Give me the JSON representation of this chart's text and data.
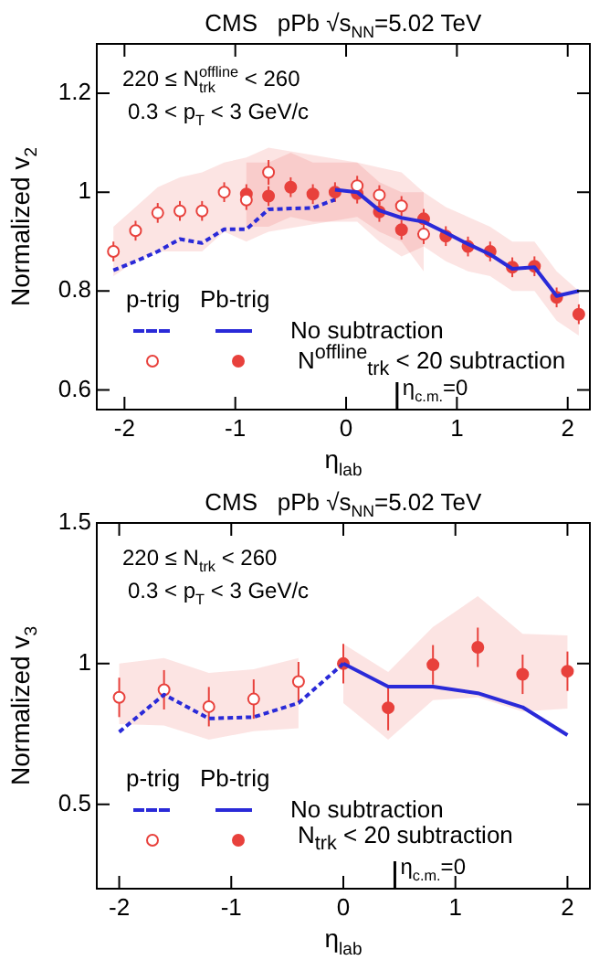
{
  "chart_data": [
    {
      "type": "scatter",
      "title": "CMS   pPb √s$_{NN}$=5.02 TeV",
      "xlabel": "η$_{lab}$",
      "ylabel": "Normalized v$_{2}$",
      "annotations": [
        "220 ≤ N$^{offline}$$_{trk}$ < 260",
        "0.3 < p$_{T}$ < 3 GeV/c"
      ],
      "legend_title": "p-trig   Pb-trig",
      "legend": "bottom left",
      "xlim": [
        -2.25,
        2.2
      ],
      "xticks": [
        -2,
        -1,
        0,
        1,
        2
      ],
      "ylim": [
        0.56,
        1.3
      ],
      "yticks": [
        0.6,
        0.8,
        1,
        1.2
      ],
      "ref_lines": [
        {
          "axis": "x",
          "value": 0.46,
          "label": "η$_{c.m.}$=0"
        }
      ],
      "series": [
        {
          "type": "line",
          "color": "#2a2ad8",
          "line_style": "dashed",
          "marker": "none",
          "x": [
            -2.1,
            -1.9,
            -1.7,
            -1.5,
            -1.3,
            -1.1,
            -0.9,
            -0.7,
            -0.5,
            -0.3,
            -0.1
          ],
          "values": [
            0.842,
            0.86,
            0.88,
            0.905,
            0.897,
            0.925,
            0.925,
            0.965,
            0.967,
            0.968,
            0.985
          ]
        },
        {
          "type": "line",
          "name": "No subtraction",
          "color": "#2a2ad8",
          "line_style": "solid",
          "marker": "none",
          "x": [
            -0.1,
            0.1,
            0.3,
            0.5,
            0.7,
            0.9,
            1.1,
            1.3,
            1.5,
            1.7,
            1.9,
            2.1
          ],
          "values": [
            1.005,
            1.0,
            0.963,
            0.948,
            0.94,
            0.918,
            0.895,
            0.874,
            0.845,
            0.848,
            0.79,
            0.8
          ]
        },
        {
          "type": "scatter",
          "color": "#e8413c",
          "marker": "circle",
          "x": [
            -2.1,
            -1.9,
            -1.7,
            -1.5,
            -1.3,
            -1.1,
            -0.9,
            -0.7,
            0.1,
            0.3,
            0.5,
            0.7
          ],
          "values": [
            0.88,
            0.922,
            0.958,
            0.962,
            0.962,
            1.0,
            0.984,
            1.04,
            1.013,
            0.994,
            0.972,
            0.915
          ],
          "errors": [
            0.02,
            0.02,
            0.02,
            0.02,
            0.02,
            0.02,
            0.02,
            0.025,
            0.02,
            0.02,
            0.02,
            0.02
          ],
          "lower": [
            0.83,
            0.86,
            0.88,
            0.88,
            0.88,
            0.92,
            0.9,
            0.92,
            0.95,
            0.92,
            0.9,
            0.84
          ],
          "upper": [
            0.93,
            0.97,
            1.01,
            1.03,
            1.04,
            1.06,
            1.07,
            1.09,
            1.06,
            1.05,
            1.04,
            1.0
          ]
        },
        {
          "type": "scatter",
          "name": "N$^{offline}$$_{trk}$ < 20 subtraction",
          "color": "#e8413c",
          "marker": "circle",
          "x": [
            -0.9,
            -0.7,
            -0.5,
            -0.3,
            -0.1,
            0.1,
            0.3,
            0.5,
            0.7,
            0.9,
            1.1,
            1.3,
            1.5,
            1.7,
            1.9,
            2.1
          ],
          "values": [
            0.996,
            0.992,
            1.01,
            0.996,
            1.0,
            0.997,
            0.96,
            0.924,
            0.946,
            0.911,
            0.89,
            0.88,
            0.848,
            0.85,
            0.787,
            0.753
          ],
          "errors": [
            0.02,
            0.02,
            0.02,
            0.02,
            0.02,
            0.02,
            0.02,
            0.02,
            0.02,
            0.02,
            0.02,
            0.02,
            0.02,
            0.02,
            0.02,
            0.02
          ],
          "lower": [
            0.93,
            0.93,
            0.95,
            0.94,
            0.94,
            0.94,
            0.9,
            0.87,
            0.89,
            0.86,
            0.84,
            0.83,
            0.8,
            0.8,
            0.74,
            0.71
          ],
          "upper": [
            1.06,
            1.06,
            1.08,
            1.06,
            1.06,
            1.06,
            1.02,
            1.0,
            1.0,
            0.97,
            0.95,
            0.93,
            0.9,
            0.9,
            0.84,
            0.8
          ]
        }
      ]
    },
    {
      "type": "scatter",
      "title": "CMS   pPb √s$_{NN}$=5.02 TeV",
      "xlabel": "η$_{lab}$",
      "ylabel": "Normalized v$_{3}$",
      "annotations": [
        "220 ≤ N$_{trk}$ < 260",
        "0.3 < p$_{T}$ < 3 GeV/c"
      ],
      "legend_title": "p-trig   Pb-trig",
      "legend": "bottom left",
      "xlim": [
        -2.2,
        2.2
      ],
      "xticks": [
        -2,
        -1,
        0,
        1,
        2
      ],
      "ylim": [
        0.2,
        1.5
      ],
      "yticks": [
        0.5,
        1,
        1.5
      ],
      "ref_lines": [
        {
          "axis": "x",
          "value": 0.46,
          "label": "η$_{c.m.}$=0"
        }
      ],
      "series": [
        {
          "type": "line",
          "color": "#2a2ad8",
          "line_style": "dashed",
          "marker": "none",
          "x": [
            -2,
            -1.6,
            -1.2,
            -0.8,
            -0.4,
            0
          ],
          "values": [
            0.757,
            0.89,
            0.805,
            0.81,
            0.86,
            1.0
          ]
        },
        {
          "type": "line",
          "name": "No subtraction",
          "color": "#2a2ad8",
          "line_style": "solid",
          "marker": "none",
          "x": [
            0,
            0.4,
            0.8,
            1.2,
            1.6,
            2
          ],
          "values": [
            1.0,
            0.918,
            0.918,
            0.895,
            0.845,
            0.746
          ]
        },
        {
          "type": "scatter",
          "color": "#e8413c",
          "marker": "circle",
          "x": [
            -2,
            -1.6,
            -1.2,
            -0.8,
            -0.4
          ],
          "values": [
            0.88,
            0.907,
            0.847,
            0.874,
            0.936
          ],
          "errors": [
            0.07,
            0.07,
            0.07,
            0.07,
            0.07
          ],
          "lower": [
            0.785,
            0.78,
            0.73,
            0.76,
            0.77
          ],
          "upper": [
            1.0,
            1.02,
            0.967,
            0.98,
            1.02
          ]
        },
        {
          "type": "scatter",
          "name": "N$_{trk}$ < 20 subtraction",
          "color": "#e8413c",
          "marker": "circle",
          "x": [
            0,
            0.4,
            0.8,
            1.2,
            1.6,
            2
          ],
          "values": [
            1.0,
            0.843,
            0.996,
            1.058,
            0.962,
            0.973
          ],
          "errors": [
            0.07,
            0.08,
            0.07,
            0.07,
            0.07,
            0.07
          ],
          "lower": [
            0.86,
            0.73,
            0.87,
            0.88,
            0.83,
            0.84
          ],
          "upper": [
            1.07,
            0.97,
            1.13,
            1.24,
            1.106,
            1.1
          ]
        }
      ]
    }
  ]
}
